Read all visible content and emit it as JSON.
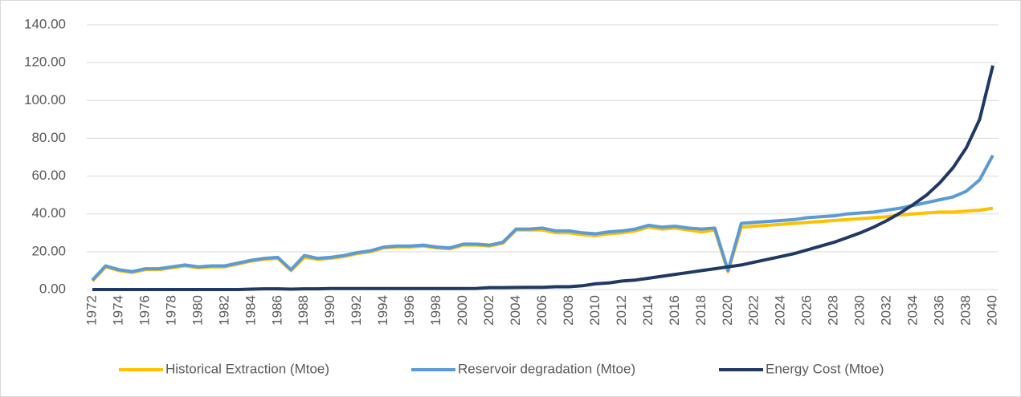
{
  "chart_data": {
    "type": "line",
    "categories": [
      "1972",
      null,
      "1974",
      null,
      "1976",
      null,
      "1978",
      null,
      "1980",
      null,
      "1982",
      null,
      "1984",
      null,
      "1986",
      null,
      "1988",
      null,
      "1990",
      null,
      "1992",
      null,
      "1994",
      null,
      "1996",
      null,
      "1998",
      null,
      "2000",
      null,
      "2002",
      null,
      "2004",
      null,
      "2006",
      null,
      "2008",
      null,
      "2010",
      null,
      "2012",
      null,
      "2014",
      null,
      "2016",
      null,
      "2018",
      null,
      "2020",
      null,
      "2022",
      null,
      "2024",
      null,
      "2026",
      null,
      "2028",
      null,
      "2030",
      null,
      "2032",
      null,
      "2034",
      null,
      "2036",
      null,
      "2038",
      null,
      "2040"
    ],
    "series": [
      {
        "name": "Historical Extraction (Mtoe)",
        "color": "#ffc000",
        "values": [
          4.5,
          12,
          10,
          9,
          10.5,
          10.5,
          11.5,
          12.5,
          11.5,
          12,
          12,
          13.5,
          15,
          16,
          16.5,
          10,
          17,
          16,
          16.5,
          17.5,
          19,
          20,
          22,
          22.5,
          22.5,
          23,
          22,
          21.5,
          23.5,
          23.5,
          23,
          24.5,
          31.5,
          31.5,
          31.5,
          30,
          30,
          29,
          28.5,
          29.5,
          30,
          31,
          33,
          32,
          32.5,
          31.5,
          30.5,
          31.5,
          9.5,
          33,
          33.5,
          34,
          34.5,
          35,
          35.5,
          36,
          36.5,
          37,
          37.5,
          38,
          38.5,
          39.5,
          40,
          40.5,
          41,
          41,
          41.5,
          42,
          43
        ]
      },
      {
        "name": "Reservoir degradation (Mtoe)",
        "color": "#5b9bd5",
        "values": [
          5,
          12.5,
          10.5,
          9.5,
          11,
          11,
          12,
          13,
          12,
          12.5,
          12.5,
          14,
          15.5,
          16.5,
          17,
          10.5,
          18,
          16.5,
          17,
          18,
          19.5,
          20.5,
          22.5,
          23,
          23,
          23.5,
          22.5,
          22,
          24,
          24,
          23.5,
          25,
          32,
          32,
          32.5,
          31,
          31,
          30,
          29.5,
          30.5,
          31,
          32,
          34,
          33,
          33.5,
          32.5,
          32,
          32.5,
          10,
          35,
          35.5,
          36,
          36.5,
          37,
          38,
          38.5,
          39,
          40,
          40.5,
          41,
          42,
          43,
          44.5,
          46,
          47.5,
          49,
          52,
          58,
          71
        ]
      },
      {
        "name": "Energy Cost (Mtoe)",
        "color": "#203864",
        "values": [
          0,
          0,
          0,
          0,
          0,
          0,
          0,
          0,
          0,
          0,
          0,
          0,
          0.2,
          0.4,
          0.4,
          0.2,
          0.4,
          0.4,
          0.5,
          0.5,
          0.5,
          0.5,
          0.5,
          0.5,
          0.5,
          0.5,
          0.5,
          0.5,
          0.5,
          0.6,
          1,
          1,
          1.1,
          1.2,
          1.2,
          1.5,
          1.5,
          2,
          3,
          3.5,
          4.5,
          5,
          6,
          7,
          8,
          9,
          10,
          11,
          12,
          13,
          14.5,
          16,
          17.5,
          19,
          21,
          23,
          25,
          27.5,
          30,
          33,
          36.5,
          40.5,
          45,
          50,
          56.5,
          64.5,
          75,
          90,
          118.5
        ]
      }
    ],
    "ylim": [
      0,
      140
    ],
    "yticks": [
      {
        "value": 0,
        "label": "0.00"
      },
      {
        "value": 20,
        "label": "20.00"
      },
      {
        "value": 40,
        "label": "40.00"
      },
      {
        "value": 60,
        "label": "60.00"
      },
      {
        "value": 80,
        "label": "80.00"
      },
      {
        "value": 100,
        "label": "100.00"
      },
      {
        "value": 120,
        "label": "120.00"
      },
      {
        "value": 140,
        "label": "140.00"
      }
    ],
    "grid": true,
    "legend": "bottom"
  }
}
